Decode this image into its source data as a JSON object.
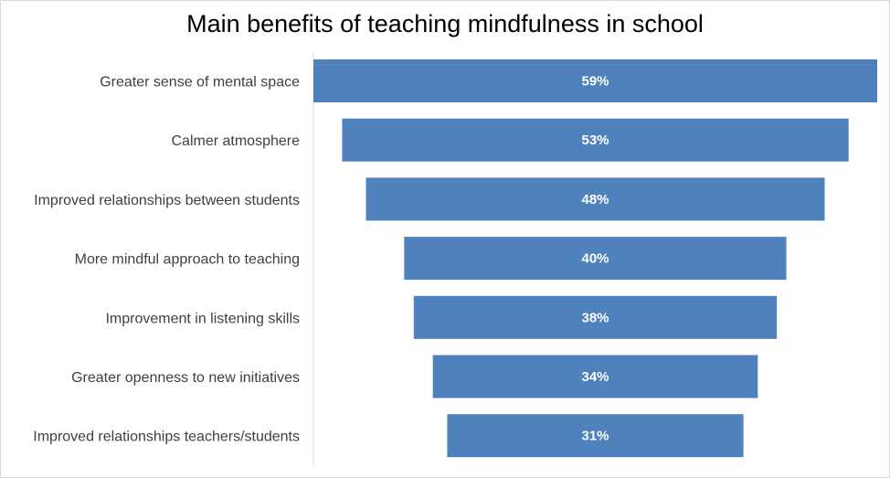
{
  "chart_data": {
    "type": "bar",
    "title": "Main benefits of teaching mindfulness in school",
    "xlabel": "",
    "ylabel": "",
    "categories": [
      "Greater sense of mental space",
      "Calmer atmosphere",
      "Improved relationships between students",
      "More mindful approach to teaching",
      "Improvement in listening skills",
      "Greater openness to new initiatives",
      "Improved relationships teachers/students"
    ],
    "values": [
      59,
      53,
      48,
      40,
      38,
      34,
      31
    ],
    "data_labels": [
      "59%",
      "53%",
      "48%",
      "40%",
      "38%",
      "34%",
      "31%"
    ],
    "orientation": "horizontal-funnel",
    "bar_color": "#4f81bd",
    "label_color": "#ffffff",
    "grid": false,
    "legend": "none"
  }
}
